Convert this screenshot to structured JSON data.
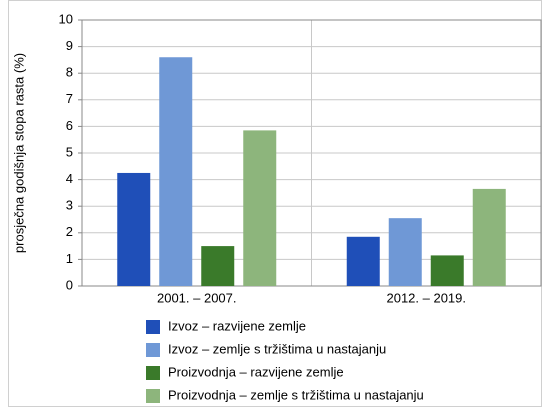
{
  "chart_data": {
    "type": "bar",
    "ylabel": "prosječna godišnja stopa rasta (%)",
    "categories": [
      "2001. – 2007.",
      "2012. – 2019."
    ],
    "series": [
      {
        "name": "Izvoz – razvijene zemlje",
        "color": "#1f4fb8",
        "values": [
          4.25,
          1.85
        ]
      },
      {
        "name": "Izvoz –  zemlje s tržištima u nastajanju",
        "color": "#6f98d6",
        "values": [
          8.6,
          2.55
        ]
      },
      {
        "name": "Proizvodnja – razvijene zemlje",
        "color": "#3a7a2a",
        "values": [
          1.5,
          1.15
        ]
      },
      {
        "name": "Proizvodnja – zemlje s tržištima u nastajanju",
        "color": "#8db57c",
        "values": [
          5.85,
          3.65
        ]
      }
    ],
    "ylim": [
      0,
      10
    ],
    "yticks": [
      0,
      1,
      2,
      3,
      4,
      5,
      6,
      7,
      8,
      9,
      10
    ],
    "grid": true
  }
}
